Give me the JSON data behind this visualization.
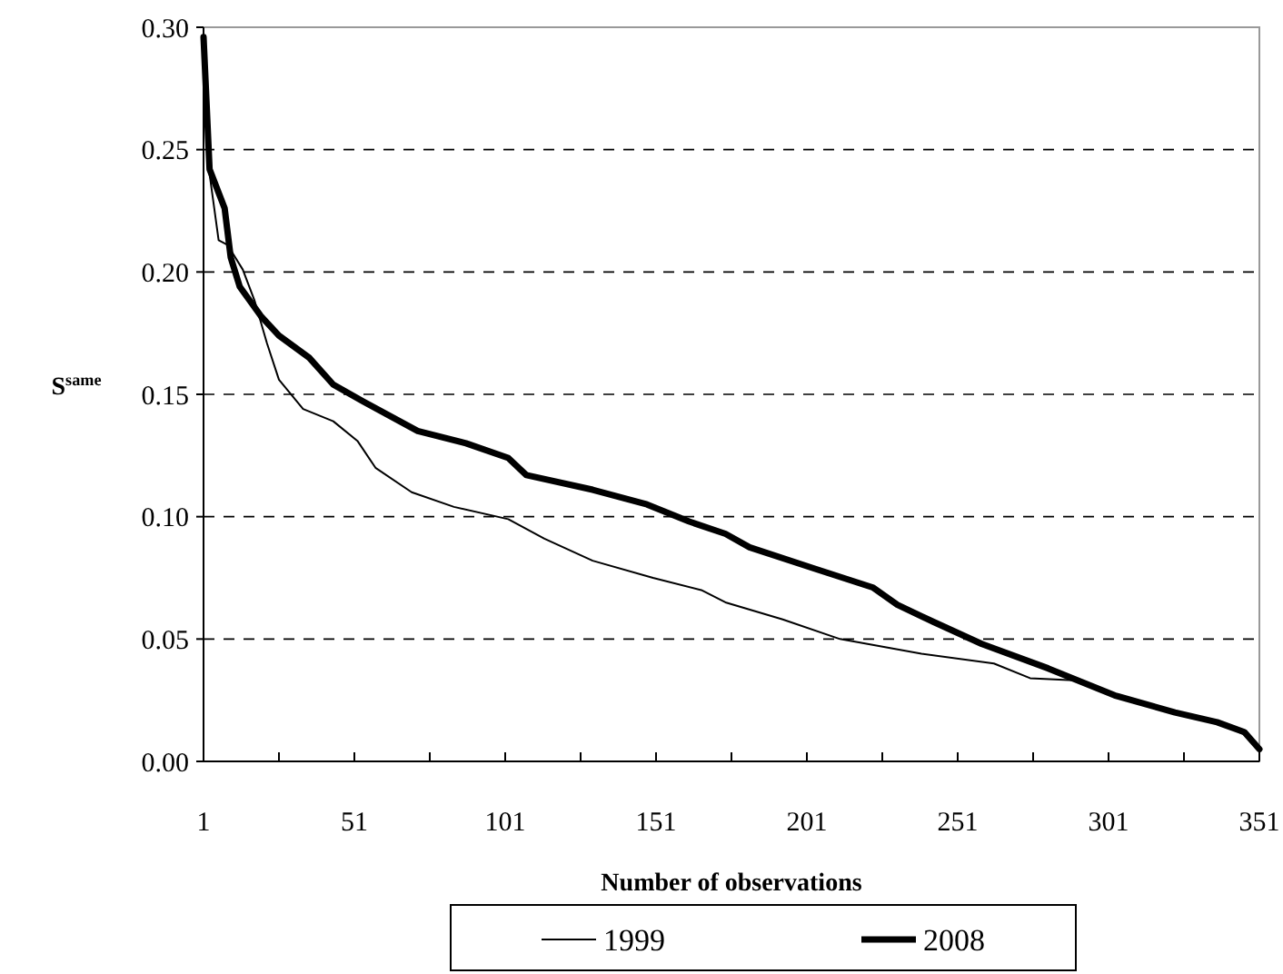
{
  "chart_data": {
    "type": "line",
    "xlabel": "Number of observations",
    "ylabel": "S$^{same}$",
    "xlim": [
      1,
      351
    ],
    "ylim": [
      0,
      0.3
    ],
    "xticks": [
      1,
      {
        "value": 26,
        "label": null
      },
      51,
      {
        "value": 76,
        "label": null
      },
      101,
      {
        "value": 126,
        "label": null
      },
      151,
      {
        "value": 176,
        "label": null
      },
      201,
      {
        "value": 226,
        "label": null
      },
      251,
      {
        "value": 276,
        "label": null
      },
      301,
      {
        "value": 326,
        "label": null
      },
      351
    ],
    "yticks": [
      {
        "value": 0,
        "label": "0.00"
      },
      {
        "value": 0.05,
        "label": "0.05"
      },
      {
        "value": 0.1,
        "label": "0.10"
      },
      {
        "value": 0.15,
        "label": "0.15"
      },
      {
        "value": 0.2,
        "label": "0.20"
      },
      {
        "value": 0.25,
        "label": "0.25"
      },
      {
        "value": 0.3,
        "label": "0.30"
      }
    ],
    "grid": "y",
    "legend": "bottom",
    "marker": "none",
    "series": [
      {
        "name": "1999",
        "color": "#000000",
        "x": [
          1,
          3,
          6,
          9,
          14,
          18,
          22,
          26,
          34,
          44,
          52,
          58,
          70,
          84,
          102,
          114,
          130,
          150,
          166,
          174,
          193,
          212,
          239,
          263,
          275,
          291,
          303,
          323,
          337,
          346,
          351
        ],
        "values": [
          0.296,
          0.24,
          0.213,
          0.211,
          0.201,
          0.188,
          0.171,
          0.156,
          0.144,
          0.139,
          0.131,
          0.12,
          0.11,
          0.104,
          0.099,
          0.091,
          0.082,
          0.075,
          0.07,
          0.065,
          0.058,
          0.05,
          0.044,
          0.04,
          0.034,
          0.033,
          0.027,
          0.02,
          0.016,
          0.011,
          0.005
        ]
      },
      {
        "name": "2008",
        "color": "#000000",
        "x": [
          1,
          3,
          8,
          10,
          13,
          20,
          26,
          36,
          44,
          54,
          72,
          88,
          102,
          108,
          130,
          148,
          162,
          174,
          182,
          203,
          223,
          231,
          243,
          259,
          281,
          303,
          323,
          337,
          346,
          351
        ],
        "values": [
          0.296,
          0.242,
          0.226,
          0.206,
          0.194,
          0.182,
          0.174,
          0.165,
          0.154,
          0.147,
          0.135,
          0.13,
          0.124,
          0.117,
          0.111,
          0.105,
          0.098,
          0.093,
          0.0875,
          0.079,
          0.071,
          0.064,
          0.057,
          0.048,
          0.038,
          0.027,
          0.02,
          0.016,
          0.012,
          0.005
        ]
      }
    ]
  }
}
